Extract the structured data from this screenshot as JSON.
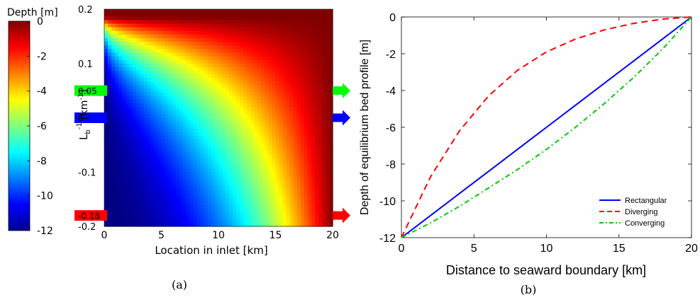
{
  "colors": {
    "rect_line": "#0000ff",
    "div_line": "#ff0000",
    "conv_line": "#00cc00",
    "arrow_green": "#00ff00",
    "arrow_blue": "#0000ff",
    "arrow_red": "#ff0000"
  },
  "chart_data": [
    {
      "type": "heatmap",
      "panel_label": "(a)",
      "colorbar": {
        "title": "Depth [m]",
        "range": [
          -12,
          0
        ],
        "ticks": [
          "0",
          "-2",
          "-4",
          "-6",
          "-8",
          "-10",
          "-12"
        ],
        "colormap": "jet"
      },
      "xlabel": "Location in inlet [km]",
      "ylabel_main": "L",
      "ylabel_sub": "b",
      "ylabel_sup": "-1",
      "ylabel_unit": " [km",
      "ylabel_unit_sup": "-1",
      "ylabel_close": "]",
      "xlim": [
        0,
        20
      ],
      "ylim": [
        -0.2,
        0.2
      ],
      "xticks": [
        "0",
        "5",
        "10",
        "15",
        "20"
      ],
      "yticks": [
        "0.2",
        "0.1",
        "-0.1",
        "-0.2"
      ],
      "markers": [
        {
          "label": "0.05",
          "value": 0.05,
          "color": "green"
        },
        {
          "label": "0",
          "value": 0,
          "color": "blue"
        },
        {
          "label": "-0.18",
          "value": -0.18,
          "color": "red"
        }
      ],
      "grid": false
    },
    {
      "type": "line",
      "panel_label": "(b)",
      "xlabel": "Distance to seaward boundary [km]",
      "ylabel": "Depth of equilibrium bed profile [m]",
      "xlim": [
        0,
        20
      ],
      "ylim": [
        -12,
        0
      ],
      "xticks": [
        "0",
        "5",
        "10",
        "15",
        "20"
      ],
      "yticks": [
        "0",
        "-2",
        "-4",
        "-6",
        "-8",
        "-10",
        "-12"
      ],
      "legend_position": "bottom-right",
      "grid": false,
      "x": [
        0,
        2,
        4,
        6,
        8,
        10,
        12,
        14,
        16,
        18,
        20
      ],
      "series": [
        {
          "name": "Rectangular",
          "style": "solid",
          "values": [
            -12,
            -10.8,
            -9.6,
            -8.4,
            -7.2,
            -6.0,
            -4.8,
            -3.6,
            -2.4,
            -1.2,
            0
          ]
        },
        {
          "name": "Diverging",
          "style": "dashed",
          "values": [
            -12,
            -8.7,
            -6.2,
            -4.3,
            -2.9,
            -1.9,
            -1.2,
            -0.7,
            -0.35,
            -0.12,
            0
          ]
        },
        {
          "name": "Converging",
          "style": "dashdot",
          "values": [
            -12,
            -11.2,
            -10.3,
            -9.3,
            -8.3,
            -7.2,
            -6.0,
            -4.7,
            -3.3,
            -1.75,
            0
          ]
        }
      ]
    }
  ]
}
